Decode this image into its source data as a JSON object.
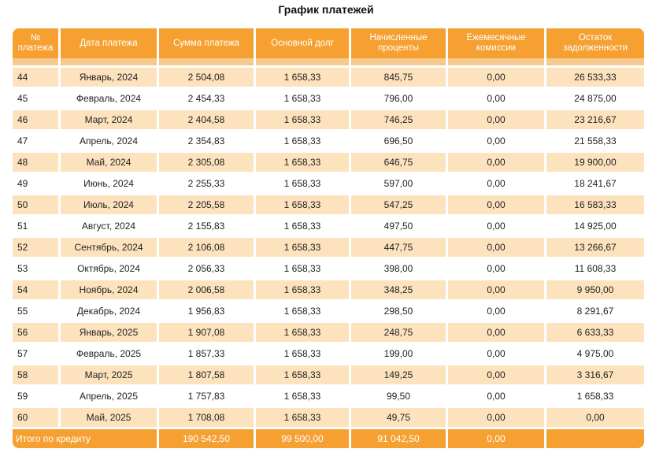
{
  "title": "График платежей",
  "columns": [
    "№ платежа",
    "Дата платежа",
    "Сумма платежа",
    "Основной долг",
    "Начисленные проценты",
    "Ежемесячные комиссии",
    "Остаток задолженности"
  ],
  "rows": [
    [
      "44",
      "Январь, 2024",
      "2 504,08",
      "1 658,33",
      "845,75",
      "0,00",
      "26 533,33"
    ],
    [
      "45",
      "Февраль, 2024",
      "2 454,33",
      "1 658,33",
      "796,00",
      "0,00",
      "24 875,00"
    ],
    [
      "46",
      "Март, 2024",
      "2 404,58",
      "1 658,33",
      "746,25",
      "0,00",
      "23 216,67"
    ],
    [
      "47",
      "Апрель, 2024",
      "2 354,83",
      "1 658,33",
      "696,50",
      "0,00",
      "21 558,33"
    ],
    [
      "48",
      "Май, 2024",
      "2 305,08",
      "1 658,33",
      "646,75",
      "0,00",
      "19 900,00"
    ],
    [
      "49",
      "Июнь, 2024",
      "2 255,33",
      "1 658,33",
      "597,00",
      "0,00",
      "18 241,67"
    ],
    [
      "50",
      "Июль, 2024",
      "2 205,58",
      "1 658,33",
      "547,25",
      "0,00",
      "16 583,33"
    ],
    [
      "51",
      "Август, 2024",
      "2 155,83",
      "1 658,33",
      "497,50",
      "0,00",
      "14 925,00"
    ],
    [
      "52",
      "Сентябрь, 2024",
      "2 106,08",
      "1 658,33",
      "447,75",
      "0,00",
      "13 266,67"
    ],
    [
      "53",
      "Октябрь, 2024",
      "2 056,33",
      "1 658,33",
      "398,00",
      "0,00",
      "11 608,33"
    ],
    [
      "54",
      "Ноябрь, 2024",
      "2 006,58",
      "1 658,33",
      "348,25",
      "0,00",
      "9 950,00"
    ],
    [
      "55",
      "Декабрь, 2024",
      "1 956,83",
      "1 658,33",
      "298,50",
      "0,00",
      "8 291,67"
    ],
    [
      "56",
      "Январь, 2025",
      "1 907,08",
      "1 658,33",
      "248,75",
      "0,00",
      "6 633,33"
    ],
    [
      "57",
      "Февраль, 2025",
      "1 857,33",
      "1 658,33",
      "199,00",
      "0,00",
      "4 975,00"
    ],
    [
      "58",
      "Март, 2025",
      "1 807,58",
      "1 658,33",
      "149,25",
      "0,00",
      "3 316,67"
    ],
    [
      "59",
      "Апрель, 2025",
      "1 757,83",
      "1 658,33",
      "99,50",
      "0,00",
      "1 658,33"
    ],
    [
      "60",
      "Май, 2025",
      "1 708,08",
      "1 658,33",
      "49,75",
      "0,00",
      "0,00"
    ]
  ],
  "totals": {
    "label": "Итого по кредиту",
    "payment": "190 542,50",
    "principal": "99 500,00",
    "interest": "91 042,50",
    "fees": "0,00",
    "balance": ""
  },
  "colors": {
    "header": "#f5a030",
    "row_odd": "#fde3bd",
    "row_even": "#ffffff"
  }
}
